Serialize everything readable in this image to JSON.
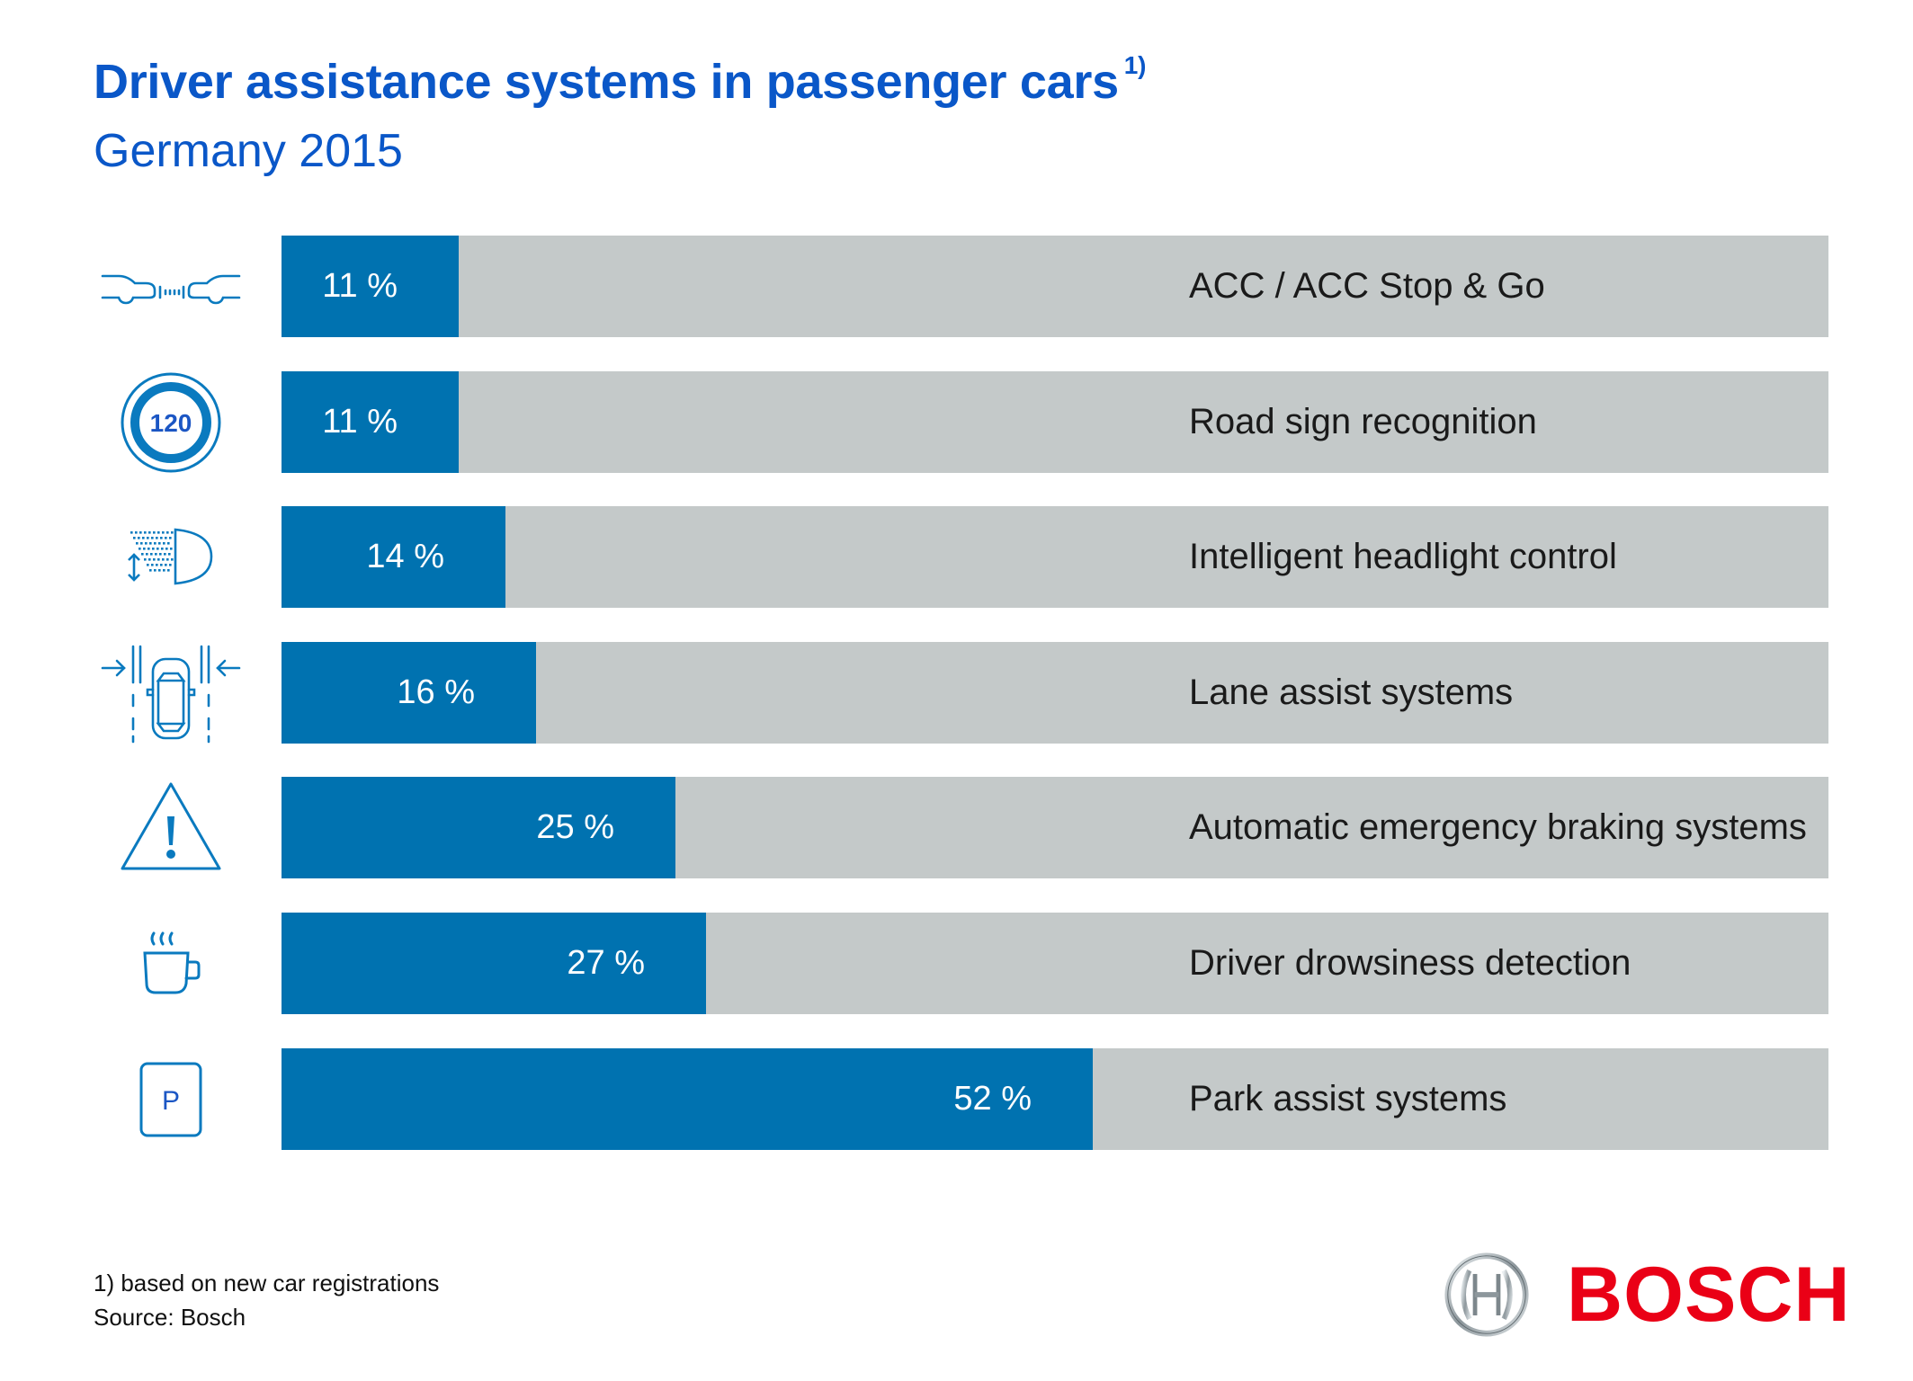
{
  "header": {
    "title": "Driver assistance systems in passenger cars",
    "title_footnote_mark": "1)",
    "subtitle": "Germany 2015"
  },
  "colors": {
    "title": "#0a57c8",
    "bar_fill": "#0072b0",
    "bar_track": "#c4c9c9",
    "icon": "#0a7abf",
    "logo_red": "#ea0016"
  },
  "chart_data": {
    "type": "bar",
    "orientation": "horizontal",
    "title": "Driver assistance systems in passenger cars 1)",
    "subtitle": "Germany 2015",
    "xlabel": "",
    "ylabel": "",
    "xlim": [
      0,
      100
    ],
    "unit": "%",
    "grid": false,
    "legend": "none",
    "categories": [
      "ACC / ACC Stop & Go",
      "Road sign recognition",
      "Intelligent headlight control",
      "Lane assist systems",
      "Automatic emergency braking systems",
      "Driver drowsiness detection",
      "Park assist systems"
    ],
    "values": [
      11,
      11,
      14,
      16,
      25,
      27,
      52
    ],
    "value_labels": [
      "11 %",
      "11 %",
      "14 %",
      "16 %",
      "25 %",
      "27 %",
      "52 %"
    ],
    "icons": [
      "acc-distance-icon",
      "speed-sign-120-icon",
      "headlight-icon",
      "lane-assist-icon",
      "warning-triangle-icon",
      "coffee-cup-icon",
      "parking-sign-icon"
    ]
  },
  "icon_text": {
    "speed_sign": "120",
    "parking": "P"
  },
  "footer": {
    "footnote": "1) based on new car registrations",
    "source": "Source: Bosch"
  },
  "logo": {
    "brand": "BOSCH"
  }
}
